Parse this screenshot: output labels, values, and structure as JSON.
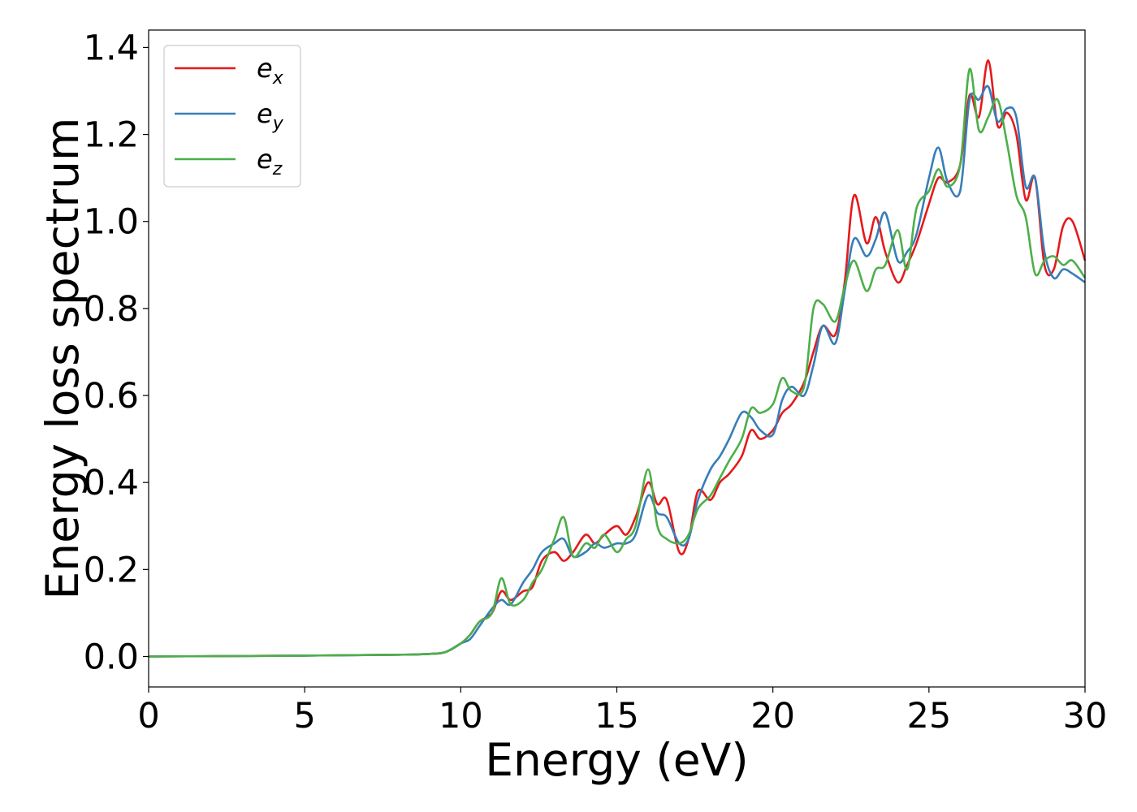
{
  "chart_data": {
    "type": "line",
    "title": "",
    "xlabel": "Energy (eV)",
    "ylabel": "Energy loss spectrum",
    "xlim": [
      0,
      30
    ],
    "ylim": [
      -0.07,
      1.44
    ],
    "xticks": [
      0,
      5,
      10,
      15,
      20,
      25,
      30
    ],
    "yticks": [
      0.0,
      0.2,
      0.4,
      0.6,
      0.8,
      1.0,
      1.2,
      1.4
    ],
    "xtick_labels": [
      "0",
      "5",
      "10",
      "15",
      "20",
      "25",
      "30"
    ],
    "ytick_labels": [
      "0.0",
      "0.2",
      "0.4",
      "0.6",
      "0.8",
      "1.0",
      "1.2",
      "1.4"
    ],
    "grid": false,
    "legend": "top-left",
    "series": [
      {
        "name": "e_x",
        "legend_base": "e",
        "legend_sub": "x",
        "color": "#e41a1c",
        "x": [
          0,
          5,
          8,
          9,
          9.5,
          10,
          10.3,
          10.6,
          11.0,
          11.3,
          11.6,
          12.0,
          12.3,
          12.6,
          13.0,
          13.3,
          13.6,
          14.0,
          14.3,
          14.6,
          15.0,
          15.3,
          15.6,
          16.0,
          16.3,
          16.6,
          17.0,
          17.3,
          17.6,
          18.0,
          18.3,
          18.6,
          19.0,
          19.3,
          19.6,
          20.0,
          20.3,
          20.6,
          21.0,
          21.3,
          21.6,
          22.0,
          22.3,
          22.6,
          23.0,
          23.3,
          23.6,
          24.0,
          24.3,
          24.6,
          25.0,
          25.3,
          25.6,
          26.0,
          26.3,
          26.6,
          26.9,
          27.2,
          27.5,
          27.8,
          28.1,
          28.4,
          28.7,
          29.0,
          29.3,
          29.6,
          30.0
        ],
        "y": [
          0.0,
          0.002,
          0.004,
          0.006,
          0.01,
          0.03,
          0.05,
          0.08,
          0.1,
          0.15,
          0.13,
          0.15,
          0.16,
          0.22,
          0.24,
          0.22,
          0.24,
          0.28,
          0.26,
          0.28,
          0.3,
          0.28,
          0.32,
          0.4,
          0.35,
          0.36,
          0.24,
          0.27,
          0.38,
          0.36,
          0.4,
          0.42,
          0.46,
          0.52,
          0.5,
          0.52,
          0.56,
          0.58,
          0.63,
          0.7,
          0.76,
          0.74,
          0.86,
          1.06,
          0.95,
          1.01,
          0.93,
          0.86,
          0.9,
          0.95,
          1.04,
          1.1,
          1.09,
          1.13,
          1.29,
          1.24,
          1.37,
          1.22,
          1.25,
          1.2,
          1.05,
          1.1,
          0.9,
          0.89,
          0.99,
          1.0,
          0.91
        ]
      },
      {
        "name": "e_y",
        "legend_base": "e",
        "legend_sub": "y",
        "color": "#377eb8",
        "x": [
          0,
          5,
          8,
          9,
          9.5,
          10,
          10.3,
          10.6,
          11.0,
          11.3,
          11.6,
          12.0,
          12.3,
          12.6,
          13.0,
          13.3,
          13.6,
          14.0,
          14.3,
          14.6,
          15.0,
          15.3,
          15.6,
          16.0,
          16.3,
          16.6,
          17.0,
          17.3,
          17.6,
          18.0,
          18.3,
          18.6,
          19.0,
          19.3,
          19.6,
          20.0,
          20.3,
          20.6,
          21.0,
          21.3,
          21.6,
          22.0,
          22.3,
          22.6,
          23.0,
          23.3,
          23.6,
          24.0,
          24.3,
          24.6,
          25.0,
          25.3,
          25.6,
          26.0,
          26.3,
          26.6,
          26.9,
          27.2,
          27.5,
          27.8,
          28.1,
          28.4,
          28.7,
          29.0,
          29.3,
          29.6,
          30.0
        ],
        "y": [
          0.0,
          0.002,
          0.004,
          0.006,
          0.01,
          0.03,
          0.04,
          0.07,
          0.11,
          0.13,
          0.12,
          0.17,
          0.2,
          0.24,
          0.26,
          0.27,
          0.23,
          0.24,
          0.26,
          0.25,
          0.26,
          0.26,
          0.28,
          0.37,
          0.33,
          0.32,
          0.26,
          0.27,
          0.36,
          0.43,
          0.46,
          0.5,
          0.56,
          0.55,
          0.52,
          0.51,
          0.59,
          0.62,
          0.6,
          0.67,
          0.76,
          0.72,
          0.84,
          0.96,
          0.92,
          0.96,
          1.02,
          0.91,
          0.93,
          0.97,
          1.1,
          1.17,
          1.09,
          1.07,
          1.28,
          1.28,
          1.31,
          1.23,
          1.26,
          1.24,
          1.08,
          1.1,
          0.93,
          0.87,
          0.89,
          0.88,
          0.86
        ]
      },
      {
        "name": "e_z",
        "legend_base": "e",
        "legend_sub": "z",
        "color": "#4daf4a",
        "x": [
          0,
          5,
          8,
          9,
          9.5,
          10,
          10.3,
          10.6,
          11.0,
          11.3,
          11.6,
          12.0,
          12.3,
          12.6,
          13.0,
          13.3,
          13.6,
          14.0,
          14.3,
          14.6,
          15.0,
          15.3,
          15.6,
          16.0,
          16.3,
          16.6,
          17.0,
          17.3,
          17.6,
          18.0,
          18.3,
          18.6,
          19.0,
          19.3,
          19.6,
          20.0,
          20.3,
          20.6,
          21.0,
          21.3,
          21.6,
          22.0,
          22.3,
          22.6,
          23.0,
          23.3,
          23.6,
          24.0,
          24.3,
          24.6,
          25.0,
          25.3,
          25.6,
          26.0,
          26.3,
          26.6,
          26.9,
          27.2,
          27.5,
          27.8,
          28.1,
          28.4,
          28.7,
          29.0,
          29.3,
          29.6,
          30.0
        ],
        "y": [
          0.0,
          0.002,
          0.004,
          0.006,
          0.01,
          0.03,
          0.05,
          0.08,
          0.1,
          0.18,
          0.12,
          0.13,
          0.17,
          0.2,
          0.27,
          0.32,
          0.23,
          0.26,
          0.25,
          0.28,
          0.24,
          0.27,
          0.3,
          0.43,
          0.3,
          0.27,
          0.26,
          0.28,
          0.34,
          0.37,
          0.41,
          0.45,
          0.5,
          0.57,
          0.56,
          0.58,
          0.64,
          0.61,
          0.62,
          0.8,
          0.81,
          0.77,
          0.85,
          0.91,
          0.84,
          0.89,
          0.9,
          0.98,
          0.89,
          1.03,
          1.07,
          1.12,
          1.08,
          1.13,
          1.35,
          1.21,
          1.24,
          1.28,
          1.18,
          1.06,
          1.01,
          0.88,
          0.91,
          0.92,
          0.9,
          0.91,
          0.87
        ]
      }
    ]
  }
}
